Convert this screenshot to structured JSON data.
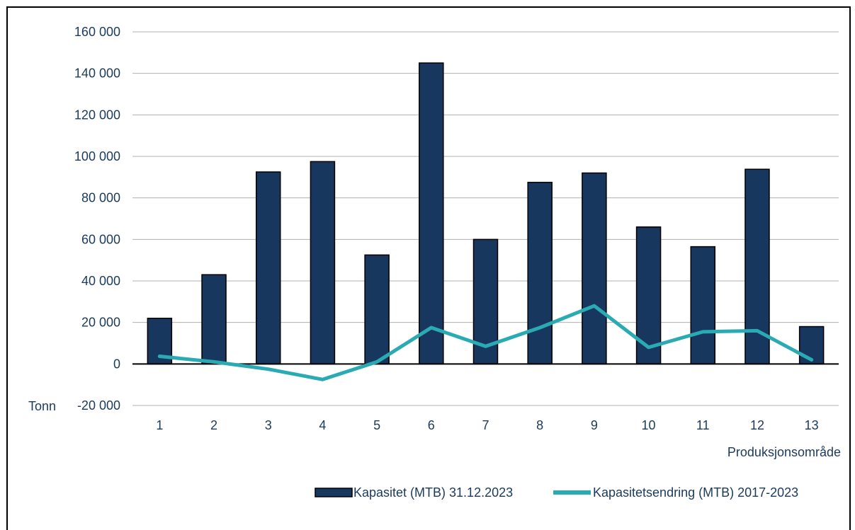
{
  "chart_data": {
    "type": "bar",
    "categories": [
      "1",
      "2",
      "3",
      "4",
      "5",
      "6",
      "7",
      "8",
      "9",
      "10",
      "11",
      "12",
      "13"
    ],
    "series": [
      {
        "name": "Kapasitet (MTB) 31.12.2023",
        "type": "bar",
        "color": "#17375e",
        "values": [
          22000,
          43000,
          92500,
          97500,
          52500,
          145000,
          60000,
          87500,
          92000,
          66000,
          56500,
          93800,
          18000
        ]
      },
      {
        "name": "Kapasitetsendring (MTB) 2017-2023",
        "type": "line",
        "color": "#2aabb3",
        "values": [
          3700,
          1000,
          -2500,
          -7500,
          1000,
          17500,
          8500,
          17500,
          28000,
          8000,
          15500,
          16000,
          2000
        ]
      }
    ],
    "ylim": [
      -20000,
      160000
    ],
    "yticks": [
      -20000,
      0,
      20000,
      40000,
      60000,
      80000,
      100000,
      120000,
      140000,
      160000
    ],
    "ytick_labels": [
      "-20 000",
      "0",
      "20 000",
      "40 000",
      "60 000",
      "80 000",
      "100 000",
      "120 000",
      "140 000",
      "160 000"
    ],
    "ylabel": "Tonn",
    "xlabel": "Produksjonsområde",
    "grid": true,
    "legend_position": "bottom-right"
  }
}
